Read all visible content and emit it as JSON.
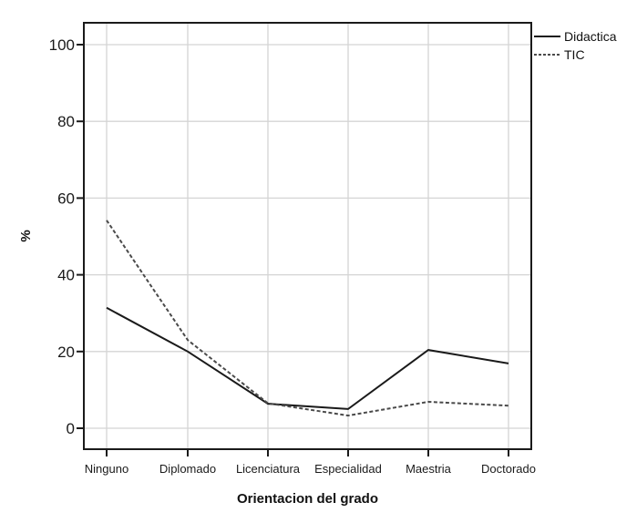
{
  "chart_data": {
    "type": "line",
    "title": "",
    "xlabel": "Orientacion del grado",
    "ylabel": "%",
    "categories": [
      "Ninguno",
      "Diplomado",
      "Licenciatura",
      "Especialidad",
      "Maestria",
      "Doctorado"
    ],
    "series": [
      {
        "name": "Didactica",
        "style": "solid",
        "color": "#1a1a1a",
        "values": [
          31.4,
          20.0,
          6.4,
          5.0,
          20.4,
          16.9
        ]
      },
      {
        "name": "TIC",
        "style": "dashed",
        "color": "#4a4a4a",
        "values": [
          54.2,
          23.0,
          6.5,
          3.3,
          6.9,
          5.9
        ]
      }
    ],
    "yticks": [
      0,
      20,
      40,
      60,
      80,
      100
    ],
    "ylim": [
      -5.5,
      105.5
    ],
    "grid": true,
    "legend_position": "top-right-outside"
  },
  "colors": {
    "frame": "#1a1a1a",
    "grid": "#d4d4d4",
    "background": "#ffffff"
  }
}
